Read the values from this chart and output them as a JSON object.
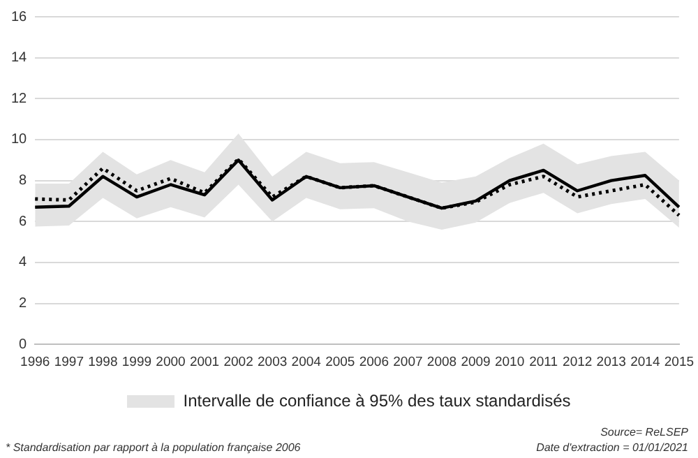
{
  "chart_data": {
    "type": "line",
    "categories": [
      "1996",
      "1997",
      "1998",
      "1999",
      "2000",
      "2001",
      "2002",
      "2003",
      "2004",
      "2005",
      "2006",
      "2007",
      "2008",
      "2009",
      "2010",
      "2011",
      "2012",
      "2013",
      "2014",
      "2015"
    ],
    "legend_title": "Intervalle de confiance à 95% des taux standardisés",
    "series": [
      {
        "color": "#000000",
        "line_style": "solid",
        "values": [
          6.7,
          6.75,
          8.2,
          7.2,
          7.8,
          7.3,
          9.0,
          7.05,
          8.2,
          7.65,
          7.75,
          7.2,
          6.65,
          7.0,
          8.0,
          8.5,
          7.5,
          8.0,
          8.25,
          6.7
        ],
        "lower": [
          5.75,
          5.8,
          7.15,
          6.15,
          6.7,
          6.2,
          7.8,
          6.0,
          7.15,
          6.6,
          6.65,
          6.0,
          5.6,
          5.95,
          6.9,
          7.4,
          6.4,
          6.85,
          7.1,
          5.7
        ],
        "upper": [
          7.85,
          7.85,
          9.4,
          8.3,
          9.0,
          8.4,
          10.3,
          8.2,
          9.4,
          8.85,
          8.9,
          8.4,
          7.9,
          8.2,
          9.1,
          9.8,
          8.8,
          9.2,
          9.4,
          8.0
        ]
      },
      {
        "color": "#000000",
        "line_style": "dotted",
        "values": [
          7.1,
          7.05,
          8.6,
          7.5,
          8.1,
          7.4,
          9.05,
          7.2,
          8.2,
          7.65,
          7.75,
          7.2,
          6.65,
          6.95,
          7.8,
          8.2,
          7.2,
          7.5,
          7.8,
          6.3
        ]
      }
    ],
    "ylim": [
      0,
      16
    ],
    "yticks": [
      0,
      2,
      4,
      6,
      8,
      10,
      12,
      14,
      16
    ],
    "grid": "y",
    "marker": "none",
    "annotations": [
      "* Standardisation par rapport à la population française 2006",
      "Source= ReLSEP",
      "Date d'extraction = 01/01/2021"
    ]
  }
}
